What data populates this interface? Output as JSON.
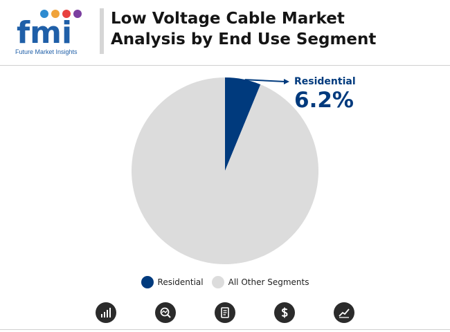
{
  "header": {
    "logo_text": "fmi",
    "logo_subtitle": "Future Market Insights",
    "title_line1": "Low Voltage Cable Market",
    "title_line2": "Analysis by End Use Segment"
  },
  "colors": {
    "residential": "#003a7d",
    "other": "#dcdcdc",
    "logo_blue": "#1f5fa8",
    "icon_bg": "#2b2b2b"
  },
  "chart_data": {
    "type": "pie",
    "slices": [
      {
        "label": "Residential",
        "value": 6.2,
        "display": "6.2%"
      },
      {
        "label": "All Other Segments",
        "value": 93.8
      }
    ],
    "callout": {
      "label": "Residential",
      "value": "6.2%"
    },
    "legend": [
      "Residential",
      "All Other Segments"
    ],
    "legend_placement": "bottom-center"
  },
  "footer_icons": [
    "growth-chart-icon",
    "analysis-magnifier-icon",
    "report-document-icon",
    "dollar-icon",
    "trend-line-icon"
  ]
}
